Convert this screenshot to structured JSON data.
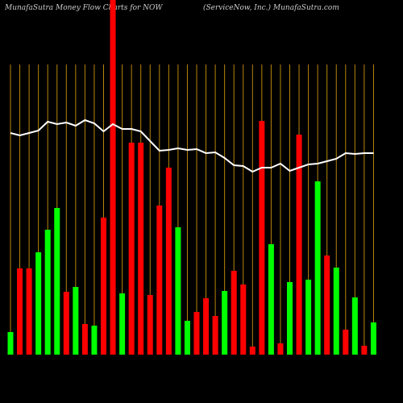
{
  "chart_data": {
    "type": "bar",
    "title": "MunafaSutra  Money Flow  Charts for NOW",
    "subtitle": "(ServiceNow,  Inc.) MunafaSutra.com",
    "categories": [
      null,
      null,
      null,
      null,
      null,
      null,
      null,
      null,
      null,
      null,
      null,
      null,
      null,
      null,
      null,
      null,
      null,
      null,
      null,
      null,
      null,
      null,
      null,
      null,
      null,
      null,
      null,
      null,
      null,
      null,
      null,
      null,
      null,
      null,
      null,
      null,
      null,
      null,
      null,
      null
    ],
    "values": [
      28,
      107,
      107,
      127,
      155,
      182,
      78,
      84,
      38,
      36,
      170,
      440,
      76,
      263,
      263,
      74,
      185,
      232,
      158,
      42,
      53,
      70,
      48,
      79,
      104,
      87,
      10,
      290,
      137,
      14,
      90,
      273,
      93,
      215,
      123,
      108,
      31,
      71,
      11,
      40
    ],
    "colors": [
      "#00ff00",
      "#ff0000",
      "#ff0000",
      "#00ff00",
      "#00ff00",
      "#00ff00",
      "#ff0000",
      "#00ff00",
      "#ff0000",
      "#00ff00",
      "#ff0000",
      "#ff0000",
      "#00ff00",
      "#ff0000",
      "#ff0000",
      "#ff0000",
      "#ff0000",
      "#ff0000",
      "#00ff00",
      "#00ff00",
      "#ff0000",
      "#ff0000",
      "#ff0000",
      "#00ff00",
      "#ff0000",
      "#ff0000",
      "#ff0000",
      "#ff0000",
      "#00ff00",
      "#ff0000",
      "#00ff00",
      "#ff0000",
      "#00ff00",
      "#00ff00",
      "#ff0000",
      "#00ff00",
      "#ff0000",
      "#00ff00",
      "#ff0000",
      "#00ff00"
    ],
    "line_values": [
      275,
      272,
      275,
      278,
      289,
      286,
      288,
      284,
      291,
      287,
      277,
      286,
      280,
      280,
      277,
      265,
      253,
      254,
      256,
      254,
      255,
      250,
      251,
      244,
      235,
      234,
      227,
      232,
      232,
      237,
      228,
      232,
      236,
      237,
      240,
      243,
      250,
      249,
      250,
      250
    ],
    "line_color": "#ffffff",
    "grid_color": "#b8860b",
    "ylim": [
      0,
      440
    ]
  }
}
